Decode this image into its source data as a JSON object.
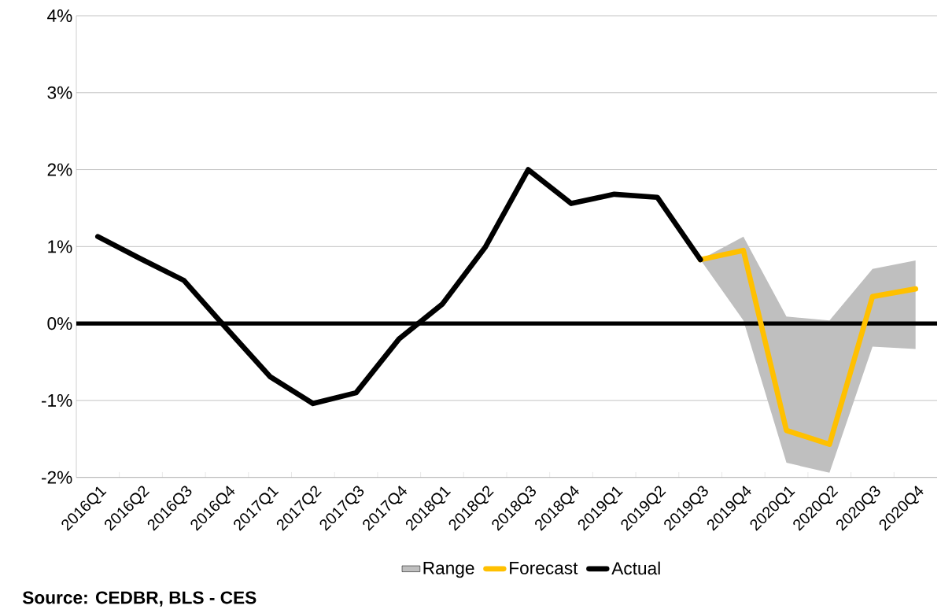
{
  "chart_data": {
    "type": "line",
    "categories": [
      "2016Q1",
      "2016Q2",
      "2016Q3",
      "2016Q4",
      "2017Q1",
      "2017Q2",
      "2017Q3",
      "2017Q4",
      "2018Q1",
      "2018Q2",
      "2018Q3",
      "2018Q4",
      "2019Q1",
      "2019Q2",
      "2019Q3",
      "2019Q4",
      "2020Q1",
      "2020Q2",
      "2020Q3",
      "2020Q4"
    ],
    "series": [
      {
        "name": "Range",
        "color": "#bfbfbf",
        "lower": [
          null,
          null,
          null,
          null,
          null,
          null,
          null,
          null,
          null,
          null,
          null,
          null,
          null,
          null,
          0.83,
          0.04,
          -1.81,
          -1.94,
          -0.3,
          -0.33
        ],
        "upper": [
          null,
          null,
          null,
          null,
          null,
          null,
          null,
          null,
          null,
          null,
          null,
          null,
          null,
          null,
          0.83,
          1.13,
          0.09,
          0.04,
          0.71,
          0.82
        ],
        "values": [
          null,
          null,
          null,
          null,
          null,
          null,
          null,
          null,
          null,
          null,
          null,
          null,
          null,
          null,
          null,
          null,
          null,
          null,
          null,
          null
        ]
      },
      {
        "name": "Forecast",
        "color": "#ffc000",
        "values": [
          null,
          null,
          null,
          null,
          null,
          null,
          null,
          null,
          null,
          null,
          null,
          null,
          null,
          null,
          0.83,
          0.95,
          -1.39,
          -1.57,
          0.35,
          0.45
        ]
      },
      {
        "name": "Actual",
        "color": "#000000",
        "values": [
          1.13,
          0.84,
          0.56,
          -0.07,
          -0.69,
          -1.04,
          -0.9,
          -0.2,
          0.25,
          0.99,
          2.0,
          1.56,
          1.68,
          1.64,
          0.83,
          null,
          null,
          null,
          null,
          null
        ]
      }
    ],
    "ylim": [
      -2,
      4
    ],
    "yticks": [
      {
        "value": -2,
        "label": "-2%"
      },
      {
        "value": -1,
        "label": "-1%"
      },
      {
        "value": 0,
        "label": "0%"
      },
      {
        "value": 1,
        "label": "1%"
      },
      {
        "value": 2,
        "label": "2%"
      },
      {
        "value": 3,
        "label": "3%"
      },
      {
        "value": 4,
        "label": "4%"
      }
    ],
    "ref_lines": [
      {
        "axis": "y",
        "value": 0,
        "color": "#000000"
      }
    ],
    "grid": "y",
    "legend": "bottom",
    "annotations": [
      "Source: CEDBR, BLS - CES"
    ]
  }
}
